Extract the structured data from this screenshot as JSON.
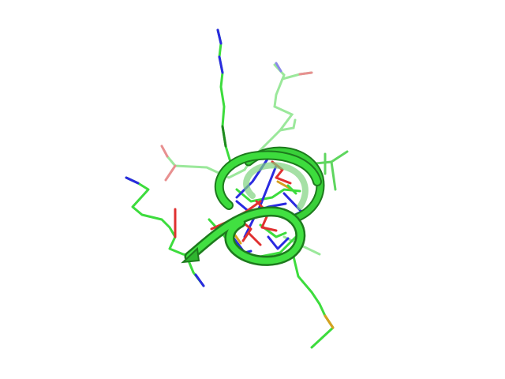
{
  "scene": {
    "background": "#ffffff",
    "subject": "protein-helix-stick-ribbon-render",
    "colors": {
      "carbon": "#3ddc3d",
      "carbon_dark": "#1f8a1f",
      "carbon_faded": "#9be89b",
      "nitrogen": "#2a2ae0",
      "oxygen": "#e03030",
      "oxygen_faded": "#e89090",
      "sulfur": "#d8a020",
      "ribbon": "#39d039",
      "ribbon_shadow": "#1d7a1d"
    }
  }
}
